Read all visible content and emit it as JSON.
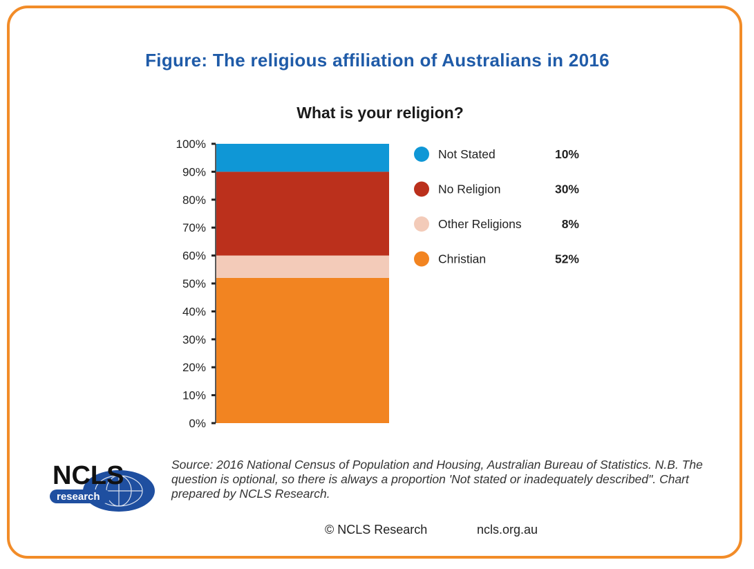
{
  "figure_title": "Figure: The religious affiliation of Australians in 2016",
  "chart_data": {
    "type": "bar",
    "stacked": true,
    "title": "What is your religion?",
    "ylim": [
      0,
      100
    ],
    "y_ticks": [
      "0%",
      "10%",
      "20%",
      "30%",
      "40%",
      "50%",
      "60%",
      "70%",
      "80%",
      "90%",
      "100%"
    ],
    "series": [
      {
        "name": "Christian",
        "value": 52,
        "label": "52%",
        "color": "#f28421"
      },
      {
        "name": "Other Religions",
        "value": 8,
        "label": "8%",
        "color": "#f3cbb9"
      },
      {
        "name": "No Religion",
        "value": 30,
        "label": "30%",
        "color": "#bb301c"
      },
      {
        "name": "Not Stated",
        "value": 10,
        "label": "10%",
        "color": "#0f97d6"
      }
    ],
    "legend_order": [
      "Not Stated",
      "No Religion",
      "Other Religions",
      "Christian"
    ],
    "legend_position": "right"
  },
  "source_text": "Source: 2016 National Census of Population and Housing, Australian Bureau of Statistics. N.B. The question is optional, so there is always a proportion 'Not stated or inadequately described\". Chart prepared by NCLS Research.",
  "footer": {
    "copyright": "© NCLS Research",
    "url": "ncls.org.au"
  },
  "logo": {
    "main": "NCLS",
    "sub": "research"
  },
  "colors": {
    "border": "#f28c28",
    "title": "#1f5ba8",
    "logo_blue": "#1f4fa0"
  }
}
